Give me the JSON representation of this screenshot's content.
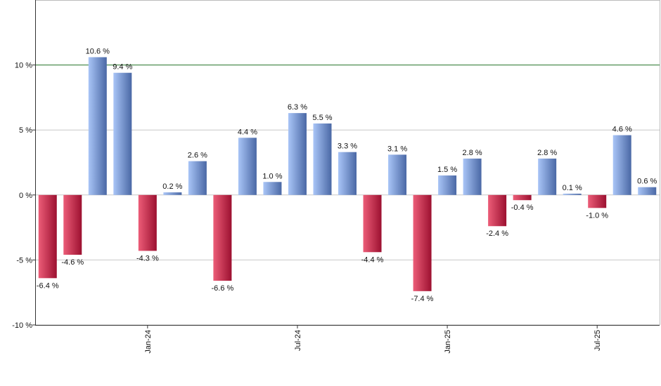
{
  "chart_data": {
    "type": "bar",
    "categories": [
      null,
      null,
      null,
      null,
      "Jan-24",
      null,
      null,
      null,
      null,
      null,
      "Jul-24",
      null,
      null,
      null,
      null,
      null,
      "Jan-25",
      null,
      null,
      null,
      null,
      null,
      "Jul-25",
      null,
      null
    ],
    "values": [
      -6.4,
      -4.6,
      10.6,
      9.4,
      -4.3,
      0.2,
      2.6,
      -6.6,
      4.4,
      1.0,
      6.3,
      5.5,
      3.3,
      -4.4,
      3.1,
      -7.4,
      1.5,
      2.8,
      -2.4,
      -0.4,
      2.8,
      0.1,
      -1.0,
      4.6,
      0.6
    ],
    "value_labels": [
      "-6.4 %",
      "-4.6 %",
      "10.6 %",
      "9.4 %",
      "-4.3 %",
      "0.2 %",
      "2.6 %",
      "-6.6 %",
      "4.4 %",
      "1.0 %",
      "6.3 %",
      "5.5 %",
      "3.3 %",
      "-4.4 %",
      "3.1 %",
      "-7.4 %",
      "1.5 %",
      "2.8 %",
      "-2.4 %",
      "-0.4 %",
      "2.8 %",
      "0.1 %",
      "-1.0 %",
      "4.6 %",
      "0.6 %"
    ],
    "positive_colors": [
      "#a9c5f7",
      "#4a68a5"
    ],
    "negative_colors": [
      "#ec5d78",
      "#9c1030"
    ],
    "ylim": [
      -10,
      15
    ],
    "yticks": [
      {
        "value": -10,
        "label": "-10 %"
      },
      {
        "value": -5,
        "label": "-5 %"
      },
      {
        "value": 0,
        "label": "0 %"
      },
      {
        "value": 5,
        "label": "5 %"
      },
      {
        "value": 10,
        "label": "10 %"
      }
    ],
    "grid": true,
    "reference_line": 10,
    "reference_color": "#2e7d32"
  }
}
